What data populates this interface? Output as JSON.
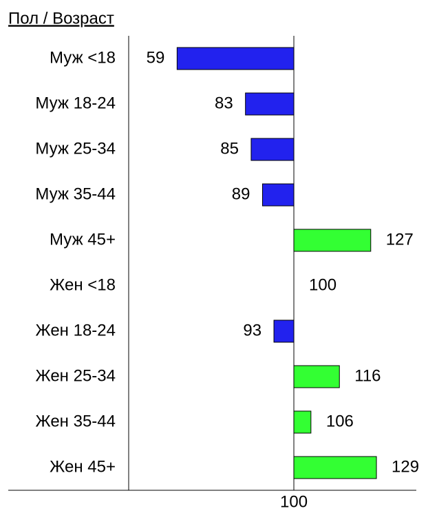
{
  "chart_data": {
    "type": "bar",
    "orientation": "horizontal",
    "title": "Пол / Возраст",
    "categories": [
      "Муж <18",
      "Муж 18-24",
      "Муж 25-34",
      "Муж 35-44",
      "Муж 45+",
      "Жен <18",
      "Жен 18-24",
      "Жен 25-34",
      "Жен 35-44",
      "Жен 45+"
    ],
    "values": [
      59,
      83,
      85,
      89,
      127,
      100,
      93,
      116,
      106,
      129
    ],
    "colors": [
      "#2222ee",
      "#2222ee",
      "#2222ee",
      "#2222ee",
      "#33ff33",
      "#2222ee",
      "#2222ee",
      "#33ff33",
      "#33ff33",
      "#33ff33"
    ],
    "xlim": [
      42,
      143
    ],
    "xticks": [
      100
    ],
    "baseline": 100
  }
}
